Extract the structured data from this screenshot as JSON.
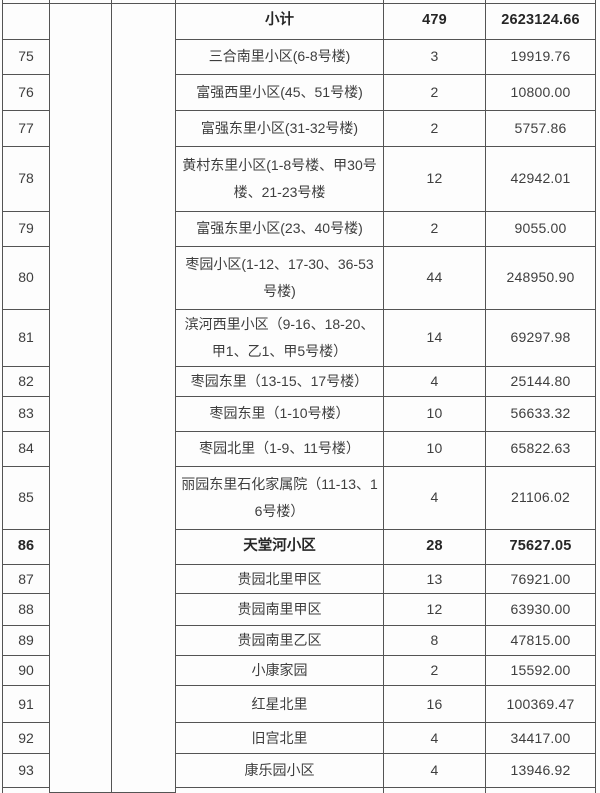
{
  "table": {
    "colors": {
      "border": "#545454",
      "text": "#3e3e3e",
      "bold_text": "#262626",
      "background": "#fdfdfd"
    },
    "subtotal": {
      "label": "小计",
      "count": "479",
      "amount": "2623124.66"
    },
    "rows": [
      {
        "no": "75",
        "name": "三合南里小区(6-8号楼)",
        "count": "3",
        "amount": "19919.76",
        "bold": false
      },
      {
        "no": "76",
        "name": "富强西里小区(45、51号楼)",
        "count": "2",
        "amount": "10800.00",
        "bold": false
      },
      {
        "no": "77",
        "name": "富强东里小区(31-32号楼)",
        "count": "2",
        "amount": "5757.86",
        "bold": false
      },
      {
        "no": "78",
        "name": "黄村东里小区(1-8号楼、甲30号楼、21-23号楼",
        "count": "12",
        "amount": "42942.01",
        "bold": false
      },
      {
        "no": "79",
        "name": "富强东里小区(23、40号楼)",
        "count": "2",
        "amount": "9055.00",
        "bold": false
      },
      {
        "no": "80",
        "name": "枣园小区(1-12、17-30、36-53号楼)",
        "count": "44",
        "amount": "248950.90",
        "bold": false
      },
      {
        "no": "81",
        "name": "滨河西里小区（9-16、18-20、甲1、乙1、甲5号楼）",
        "count": "14",
        "amount": "69297.98",
        "bold": false
      },
      {
        "no": "82",
        "name": "枣园东里（13-15、17号楼）",
        "count": "4",
        "amount": "25144.80",
        "bold": false
      },
      {
        "no": "83",
        "name": "枣园东里（1-10号楼）",
        "count": "10",
        "amount": "56633.32",
        "bold": false
      },
      {
        "no": "84",
        "name": "枣园北里（1-9、11号楼）",
        "count": "10",
        "amount": "65822.63",
        "bold": false
      },
      {
        "no": "85",
        "name": "丽园东里石化家属院（11-13、16号楼）",
        "count": "4",
        "amount": "21106.02",
        "bold": false
      },
      {
        "no": "86",
        "name": "天堂河小区",
        "count": "28",
        "amount": "75627.05",
        "bold": true
      },
      {
        "no": "87",
        "name": "贵园北里甲区",
        "count": "13",
        "amount": "76921.00",
        "bold": false
      },
      {
        "no": "88",
        "name": "贵园南里甲区",
        "count": "12",
        "amount": "63930.00",
        "bold": false
      },
      {
        "no": "89",
        "name": "贵园南里乙区",
        "count": "8",
        "amount": "47815.00",
        "bold": false
      },
      {
        "no": "90",
        "name": "小康家园",
        "count": "2",
        "amount": "15592.00",
        "bold": false
      },
      {
        "no": "91",
        "name": "红星北里",
        "count": "16",
        "amount": "100369.47",
        "bold": false
      },
      {
        "no": "92",
        "name": "旧宫北里",
        "count": "4",
        "amount": "34417.00",
        "bold": false
      },
      {
        "no": "93",
        "name": "康乐园小区",
        "count": "4",
        "amount": "13946.92",
        "bold": false
      }
    ]
  }
}
